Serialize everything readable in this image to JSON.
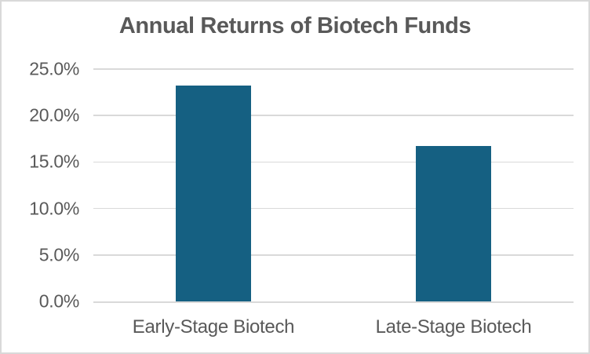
{
  "colors": {
    "bar": "#156082",
    "grid": "#d9d9d9",
    "axis": "#d9d9d9",
    "text": "#595959",
    "background": "#ffffff",
    "border": "#d9d9d9"
  },
  "chart_data": {
    "type": "bar",
    "title": "Annual Returns of Biotech Funds",
    "categories": [
      "Early-Stage Biotech",
      "Late-Stage Biotech"
    ],
    "values": [
      23.2,
      16.7
    ],
    "value_unit": "%",
    "xlabel": "",
    "ylabel": "",
    "ylim": [
      0,
      25
    ],
    "ytick_values": [
      0,
      5,
      10,
      15,
      20,
      25
    ],
    "ytick_labels": [
      "0.0%",
      "5.0%",
      "10.0%",
      "15.0%",
      "20.0%",
      "25.0%"
    ],
    "grid": true,
    "legend": false
  }
}
